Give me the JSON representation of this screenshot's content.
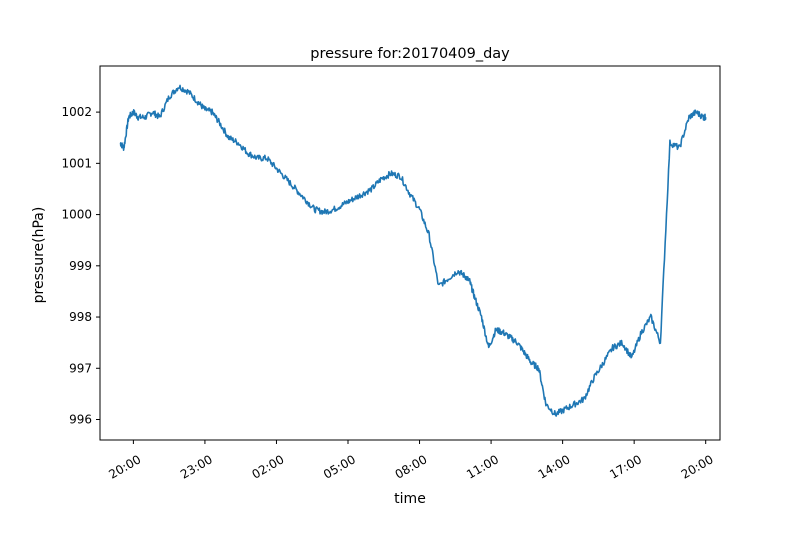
{
  "chart_data": {
    "type": "line",
    "title": "pressure for:20170409_day",
    "xlabel": "time",
    "ylabel": "pressure(hPa)",
    "x_unit": "hours since 18:00",
    "xlim": [
      0.6,
      26.6
    ],
    "ylim": [
      995.6,
      1002.9
    ],
    "x_ticks": [
      {
        "value": 2,
        "label": "20:00"
      },
      {
        "value": 5,
        "label": "23:00"
      },
      {
        "value": 8,
        "label": "02:00"
      },
      {
        "value": 11,
        "label": "05:00"
      },
      {
        "value": 14,
        "label": "08:00"
      },
      {
        "value": 17,
        "label": "11:00"
      },
      {
        "value": 20,
        "label": "14:00"
      },
      {
        "value": 23,
        "label": "17:00"
      },
      {
        "value": 26,
        "label": "20:00"
      }
    ],
    "y_ticks": [
      {
        "value": 996,
        "label": "996"
      },
      {
        "value": 997,
        "label": "997"
      },
      {
        "value": 998,
        "label": "998"
      },
      {
        "value": 999,
        "label": "999"
      },
      {
        "value": 1000,
        "label": "1000"
      },
      {
        "value": 1001,
        "label": "1001"
      },
      {
        "value": 1002,
        "label": "1002"
      }
    ],
    "grid": false,
    "line_color": "#1f77b4",
    "series": [
      {
        "name": "",
        "x": [
          1.45,
          1.6,
          1.8,
          2.0,
          2.2,
          2.5,
          2.8,
          3.1,
          3.5,
          3.9,
          4.3,
          4.7,
          5.0,
          5.3,
          5.6,
          6.0,
          6.4,
          6.8,
          7.2,
          7.6,
          8.0,
          8.4,
          8.8,
          9.2,
          9.6,
          10.0,
          10.4,
          10.8,
          11.2,
          11.6,
          12.0,
          12.4,
          12.8,
          13.2,
          13.6,
          14.0,
          14.4,
          14.8,
          15.2,
          15.6,
          15.9,
          16.1,
          16.3,
          16.6,
          16.9,
          17.2,
          17.5,
          17.8,
          18.1,
          18.4,
          18.7,
          19.0,
          19.3,
          19.7,
          20.1,
          20.5,
          20.9,
          21.3,
          21.7,
          22.1,
          22.5,
          22.9,
          23.3,
          23.7,
          24.1,
          24.5,
          24.9,
          25.3,
          25.6,
          25.9,
          26.0
        ],
        "y": [
          1001.4,
          1001.3,
          1001.9,
          1002.0,
          1001.9,
          1001.9,
          1002.0,
          1001.9,
          1002.3,
          1002.5,
          1002.4,
          1002.2,
          1002.05,
          1002.0,
          1001.8,
          1001.5,
          1001.4,
          1001.2,
          1001.1,
          1001.1,
          1000.9,
          1000.7,
          1000.5,
          1000.3,
          1000.1,
          1000.05,
          1000.1,
          1000.2,
          1000.3,
          1000.4,
          1000.5,
          1000.7,
          1000.8,
          1000.75,
          1000.4,
          1000.1,
          999.6,
          998.6,
          998.75,
          998.9,
          998.8,
          998.7,
          998.4,
          998.0,
          997.4,
          997.75,
          997.7,
          997.6,
          997.5,
          997.3,
          997.1,
          997.0,
          996.3,
          996.1,
          996.2,
          996.3,
          996.4,
          996.8,
          997.1,
          997.4,
          997.5,
          997.2,
          997.7,
          998.0,
          997.5,
          1001.4,
          1001.3,
          1001.9,
          1002.0,
          1001.9,
          1001.9
        ],
        "y_note": "values read from the plotted curve"
      }
    ]
  }
}
